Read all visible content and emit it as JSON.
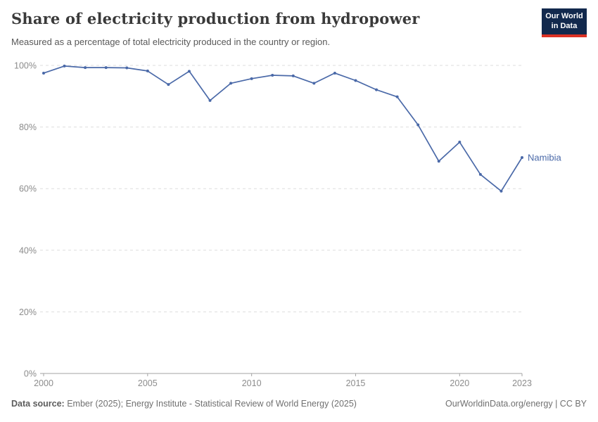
{
  "header": {
    "title": "Share of electricity production from hydropower",
    "subtitle": "Measured as a percentage of total electricity produced in the country or region."
  },
  "logo": {
    "line1": "Our World",
    "line2": "in Data",
    "bg_color": "#12294d",
    "accent_color": "#dc3224"
  },
  "chart_data": {
    "type": "line",
    "title": "Share of electricity production from hydropower",
    "xlabel": "",
    "ylabel": "",
    "xlim": [
      2000,
      2023
    ],
    "ylim": [
      0,
      100
    ],
    "xticks": [
      2000,
      2005,
      2010,
      2015,
      2020,
      2023
    ],
    "yticks": [
      0,
      20,
      40,
      60,
      80,
      100
    ],
    "ytick_suffix": "%",
    "grid": "horizontal-dashed",
    "grid_color": "#dddddd",
    "axis_color": "#a3a3a3",
    "legend_position": "end-of-line-label",
    "series": [
      {
        "name": "Namibia",
        "color": "#4a69a8",
        "x": [
          2000,
          2001,
          2002,
          2003,
          2004,
          2005,
          2006,
          2007,
          2008,
          2009,
          2010,
          2011,
          2012,
          2013,
          2014,
          2015,
          2016,
          2017,
          2018,
          2019,
          2020,
          2021,
          2022,
          2023
        ],
        "values": [
          97.5,
          99.8,
          99.3,
          99.3,
          99.2,
          98.2,
          93.8,
          98.1,
          88.6,
          94.2,
          95.7,
          96.8,
          96.6,
          94.2,
          97.5,
          95.1,
          92.1,
          89.8,
          80.7,
          68.9,
          75.1,
          64.6,
          59.2,
          70.1
        ]
      }
    ]
  },
  "footer": {
    "source_label": "Data source:",
    "source_text": " Ember (2025); Energy Institute - Statistical Review of World Energy (2025)",
    "credit": "OurWorldinData.org/energy | CC BY"
  }
}
